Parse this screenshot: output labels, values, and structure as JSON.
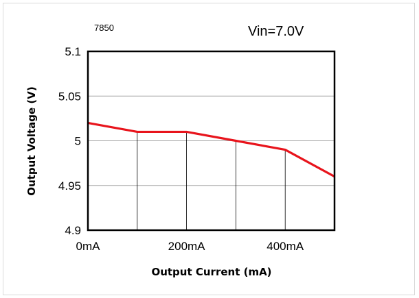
{
  "chart_data": {
    "type": "line",
    "title": "",
    "annotations": [
      "7850",
      "Vin=7.0V"
    ],
    "xlabel": "Output Current (mA)",
    "ylabel": "Output Voltage (V)",
    "x": [
      0,
      100,
      200,
      300,
      400,
      500
    ],
    "x_tick_labels": [
      {
        "value": 0,
        "label": "0mA"
      },
      {
        "value": 200,
        "label": "200mA"
      },
      {
        "value": 400,
        "label": "400mA"
      }
    ],
    "xlim": [
      0,
      500
    ],
    "ylim": [
      4.9,
      5.1
    ],
    "y_ticks": [
      {
        "value": 5.1,
        "label": "5.1"
      },
      {
        "value": 5.05,
        "label": "5.05"
      },
      {
        "value": 5.0,
        "label": "5"
      },
      {
        "value": 4.95,
        "label": "4.95"
      },
      {
        "value": 4.9,
        "label": "4.9"
      }
    ],
    "series": [
      {
        "values": [
          5.02,
          5.01,
          5.01,
          5.0,
          4.99,
          4.96
        ],
        "color": "#e8141c"
      }
    ],
    "grid": {
      "horizontal": true,
      "vertical": true
    },
    "legend": "none"
  }
}
